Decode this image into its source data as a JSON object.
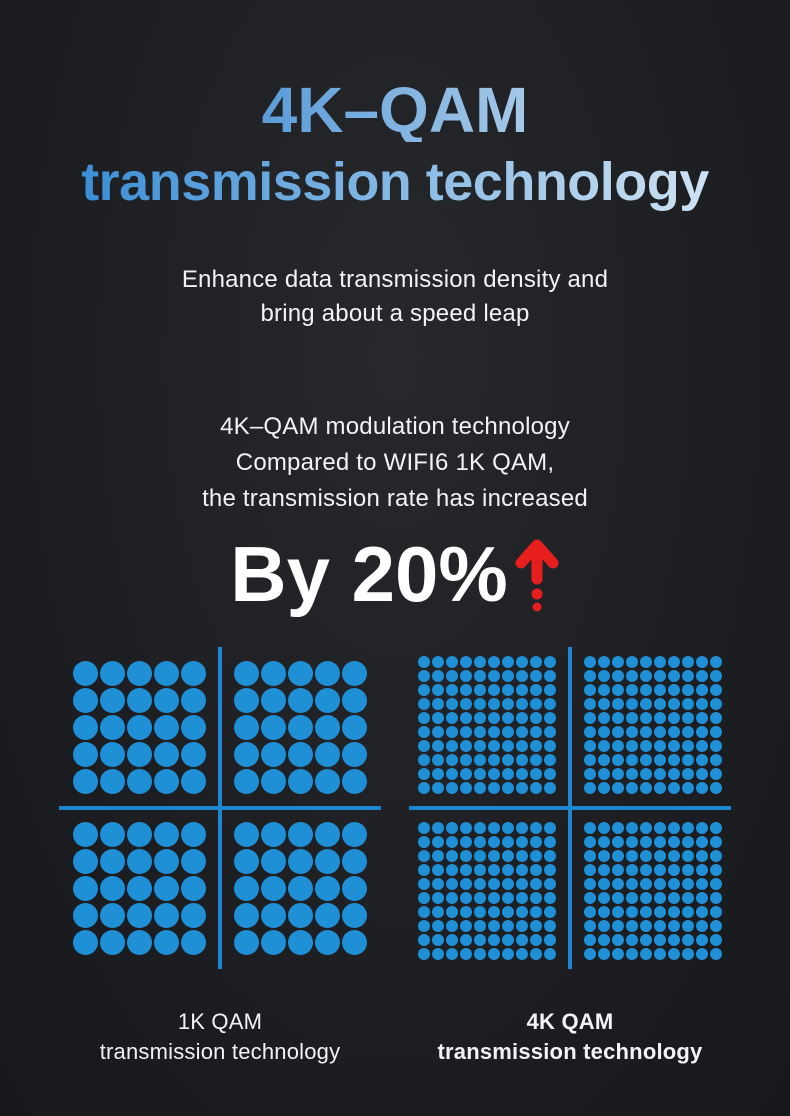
{
  "colors": {
    "dot_blue": "#1f8fd6",
    "axis_blue": "#1f86d0",
    "arrow_red": "#e61e1e",
    "title1_grad_start": "#5a9cd9",
    "title1_grad_end": "#a6c9e8",
    "title2_grad_start": "#3b8fd6",
    "title2_grad_end": "#cfe2f2",
    "text_white": "#f2f3f5"
  },
  "header": {
    "title_line1": "4K–QAM",
    "title_line2": "transmission technology"
  },
  "intro": {
    "line1": "Enhance data transmission density and",
    "line2": "bring about a speed leap"
  },
  "comparison": {
    "line1": "4K–QAM modulation technology",
    "line2": "Compared to WIFI6 1K QAM,",
    "line3": "the transmission rate has increased",
    "highlight": "By 20%",
    "arrow_icon": "up-arrow"
  },
  "constellations": [
    {
      "caption_line1": "1K QAM",
      "caption_line2": "transmission technology",
      "caption_bold": false,
      "quadrants": 4,
      "cols_per_quadrant": 5,
      "rows_per_quadrant": 5,
      "dots_total": 100,
      "dot_size": 25,
      "dot_gap": 2,
      "axis_gap": 28
    },
    {
      "caption_line1": "4K QAM",
      "caption_line2": "transmission technology",
      "caption_bold": true,
      "quadrants": 4,
      "cols_per_quadrant": 10,
      "rows_per_quadrant": 10,
      "dots_total": 400,
      "dot_size": 12,
      "dot_gap": 2,
      "axis_gap": 28
    }
  ]
}
